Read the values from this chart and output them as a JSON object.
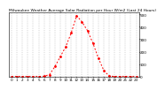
{
  "title": "Milwaukee Weather Average Solar Radiation per Hour W/m2 (Last 24 Hours)",
  "hours": [
    0,
    1,
    2,
    3,
    4,
    5,
    6,
    7,
    8,
    9,
    10,
    11,
    12,
    13,
    14,
    15,
    16,
    17,
    18,
    19,
    20,
    21,
    22,
    23
  ],
  "values": [
    0,
    0,
    0,
    0,
    0,
    0,
    2,
    15,
    80,
    160,
    240,
    350,
    490,
    440,
    370,
    270,
    150,
    50,
    3,
    0,
    0,
    0,
    0,
    0
  ],
  "line_color": "#ff0000",
  "bg_color": "#ffffff",
  "grid_color": "#888888",
  "ylim": [
    0,
    520
  ],
  "yticks": [
    0,
    100,
    200,
    300,
    400,
    500
  ],
  "xticks": [
    0,
    1,
    2,
    3,
    4,
    5,
    6,
    7,
    8,
    9,
    10,
    11,
    12,
    13,
    14,
    15,
    16,
    17,
    18,
    19,
    20,
    21,
    22,
    23
  ],
  "ylabel_fontsize": 3.0,
  "xlabel_fontsize": 3.0,
  "title_fontsize": 3.2
}
